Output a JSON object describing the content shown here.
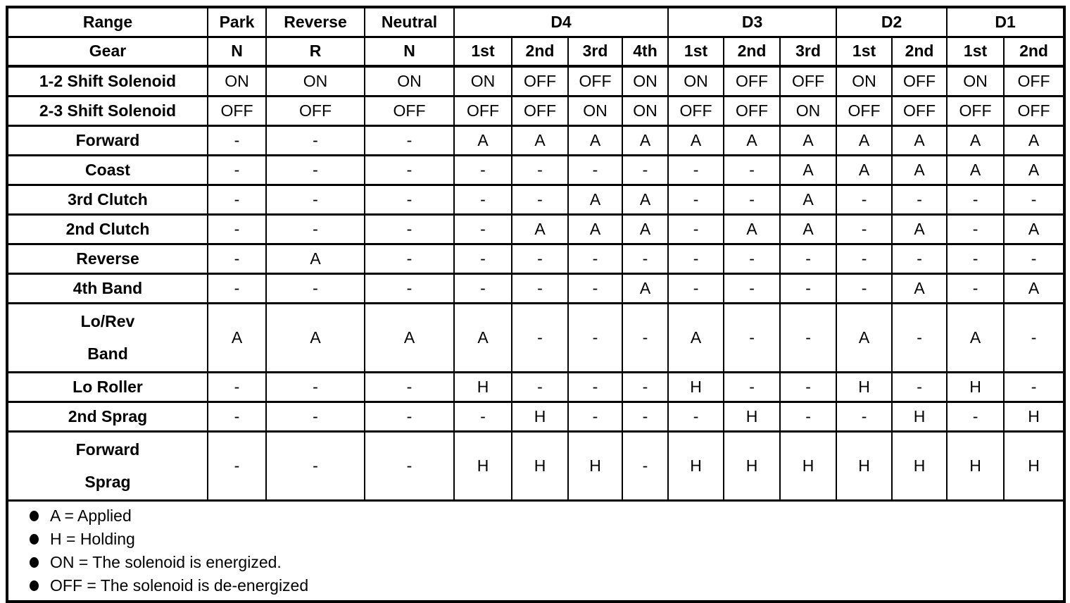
{
  "table": {
    "header": {
      "range_label": "Range",
      "gear_label": "Gear",
      "groups": [
        {
          "label": "Park",
          "span": 1
        },
        {
          "label": "Reverse",
          "span": 1
        },
        {
          "label": "Neutral",
          "span": 1
        },
        {
          "label": "D4",
          "span": 4
        },
        {
          "label": "D3",
          "span": 3
        },
        {
          "label": "D2",
          "span": 2
        },
        {
          "label": "D1",
          "span": 2
        }
      ],
      "gear_cells": [
        "N",
        "R",
        "N",
        "1st",
        "2nd",
        "3rd",
        "4th",
        "1st",
        "2nd",
        "3rd",
        "1st",
        "2nd",
        "1st",
        "2nd"
      ]
    },
    "rows": [
      {
        "label": "1-2 Shift Solenoid",
        "values": [
          "ON",
          "ON",
          "ON",
          "ON",
          "OFF",
          "OFF",
          "ON",
          "ON",
          "OFF",
          "OFF",
          "ON",
          "OFF",
          "ON",
          "OFF"
        ]
      },
      {
        "label": "2-3 Shift Solenoid",
        "values": [
          "OFF",
          "OFF",
          "OFF",
          "OFF",
          "OFF",
          "ON",
          "ON",
          "OFF",
          "OFF",
          "ON",
          "OFF",
          "OFF",
          "OFF",
          "OFF"
        ]
      },
      {
        "label": "Forward",
        "values": [
          "-",
          "-",
          "-",
          "A",
          "A",
          "A",
          "A",
          "A",
          "A",
          "A",
          "A",
          "A",
          "A",
          "A"
        ]
      },
      {
        "label": "Coast",
        "values": [
          "-",
          "-",
          "-",
          "-",
          "-",
          "-",
          "-",
          "-",
          "-",
          "A",
          "A",
          "A",
          "A",
          "A"
        ]
      },
      {
        "label": "3rd Clutch",
        "values": [
          "-",
          "-",
          "-",
          "-",
          "-",
          "A",
          "A",
          "-",
          "-",
          "A",
          "-",
          "-",
          "-",
          "-"
        ]
      },
      {
        "label": "2nd Clutch",
        "values": [
          "-",
          "-",
          "-",
          "-",
          "A",
          "A",
          "A",
          "-",
          "A",
          "A",
          "-",
          "A",
          "-",
          "A"
        ]
      },
      {
        "label": "Reverse",
        "values": [
          "-",
          "A",
          "-",
          "-",
          "-",
          "-",
          "-",
          "-",
          "-",
          "-",
          "-",
          "-",
          "-",
          "-"
        ]
      },
      {
        "label": "4th Band",
        "values": [
          "-",
          "-",
          "-",
          "-",
          "-",
          "-",
          "A",
          "-",
          "-",
          "-",
          "-",
          "A",
          "-",
          "A"
        ]
      },
      {
        "label": "Lo/Rev Band",
        "label_lines": [
          "Lo/Rev",
          "Band"
        ],
        "values": [
          "A",
          "A",
          "A",
          "A",
          "-",
          "-",
          "-",
          "A",
          "-",
          "-",
          "A",
          "-",
          "A",
          "-"
        ]
      },
      {
        "label": "Lo Roller",
        "values": [
          "-",
          "-",
          "-",
          "H",
          "-",
          "-",
          "-",
          "H",
          "-",
          "-",
          "H",
          "-",
          "H",
          "-"
        ]
      },
      {
        "label": "2nd Sprag",
        "values": [
          "-",
          "-",
          "-",
          "-",
          "H",
          "-",
          "-",
          "-",
          "H",
          "-",
          "-",
          "H",
          "-",
          "H"
        ]
      },
      {
        "label": "Forward Sprag",
        "label_lines": [
          "Forward",
          "Sprag"
        ],
        "values": [
          "-",
          "-",
          "-",
          "H",
          "H",
          "H",
          "-",
          "H",
          "H",
          "H",
          "H",
          "H",
          "H",
          "H"
        ]
      }
    ],
    "legend": [
      "A = Applied",
      "H = Holding",
      "ON = The solenoid is energized.",
      "OFF = The solenoid is de-energized"
    ]
  }
}
